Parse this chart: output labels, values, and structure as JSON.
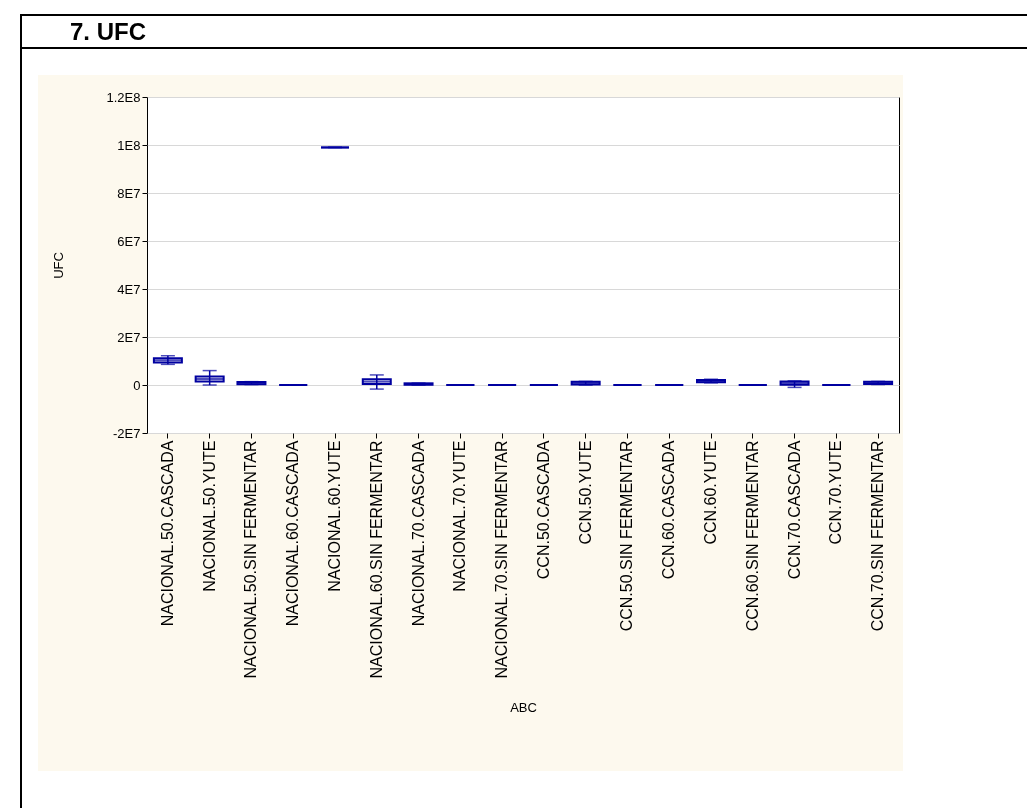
{
  "chart_data": {
    "type": "box",
    "title": "7. UFC",
    "xlabel": "ABC",
    "ylabel": "UFC",
    "color": "#0000a0",
    "categories": [
      "NACIONAL.50.CASCADA",
      "NACIONAL.50.YUTE",
      "NACIONAL.50.SIN FERMENTAR",
      "NACIONAL.60.CASCADA",
      "NACIONAL.60.YUTE",
      "NACIONAL.60.SIN FERMENTAR",
      "NACIONAL.70.CASCADA",
      "NACIONAL.70.YUTE",
      "NACIONAL.70.SIN FERMENTAR",
      "CCN.50.CASCADA",
      "CCN.50.YUTE",
      "CCN.50.SIN FERMENTAR",
      "CCN.60.CASCADA",
      "CCN.60.YUTE",
      "CCN.60.SIN FERMENTAR",
      "CCN.70.CASCADA",
      "CCN.70.YUTE",
      "CCN.70.SIN FERMENTAR"
    ],
    "boxes": [
      {
        "low": 8600000,
        "q1": 9400000,
        "median": 10300000,
        "q3": 11100000,
        "high": 12200000
      },
      {
        "low": 0,
        "q1": 1500000,
        "median": 2500000,
        "q3": 3500000,
        "high": 6000000
      },
      {
        "low": 200000,
        "q1": 300000,
        "median": 800000,
        "q3": 1200000,
        "high": 1400000
      },
      {
        "low": 0,
        "q1": 0,
        "median": 0,
        "q3": 0,
        "high": 0
      },
      {
        "low": 99000000,
        "q1": 99000000,
        "median": 99000000,
        "q3": 99000000,
        "high": 99000000
      },
      {
        "low": -1700000,
        "q1": 400000,
        "median": 1400000,
        "q3": 2400000,
        "high": 4200000
      },
      {
        "low": 0,
        "q1": 100000,
        "median": 400000,
        "q3": 700000,
        "high": 800000
      },
      {
        "low": 0,
        "q1": 0,
        "median": 0,
        "q3": 0,
        "high": 0
      },
      {
        "low": 0,
        "q1": 0,
        "median": 0,
        "q3": 0,
        "high": 0
      },
      {
        "low": 0,
        "q1": 0,
        "median": 0,
        "q3": 0,
        "high": 0
      },
      {
        "low": 0,
        "q1": 200000,
        "median": 800000,
        "q3": 1400000,
        "high": 1500000
      },
      {
        "low": 0,
        "q1": 0,
        "median": 0,
        "q3": 0,
        "high": 0
      },
      {
        "low": 0,
        "q1": 0,
        "median": 0,
        "q3": 0,
        "high": 0
      },
      {
        "low": 900000,
        "q1": 1100000,
        "median": 1600000,
        "q3": 2100000,
        "high": 2400000
      },
      {
        "low": 0,
        "q1": 0,
        "median": 0,
        "q3": 0,
        "high": 0
      },
      {
        "low": -1000000,
        "q1": 100000,
        "median": 800000,
        "q3": 1500000,
        "high": 1700000
      },
      {
        "low": 0,
        "q1": 0,
        "median": 0,
        "q3": 0,
        "high": 0
      },
      {
        "low": 200000,
        "q1": 400000,
        "median": 900000,
        "q3": 1400000,
        "high": 1500000
      }
    ],
    "ylim": [
      -20000000,
      120000000
    ],
    "yticks": [
      {
        "value": -20000000,
        "label": "-2E7"
      },
      {
        "value": 0,
        "label": "0"
      },
      {
        "value": 20000000,
        "label": "2E7"
      },
      {
        "value": 40000000,
        "label": "4E7"
      },
      {
        "value": 60000000,
        "label": "6E7"
      },
      {
        "value": 80000000,
        "label": "8E7"
      },
      {
        "value": 100000000,
        "label": "1E8"
      },
      {
        "value": 120000000,
        "label": "1.2E8"
      }
    ],
    "grid": "y"
  }
}
